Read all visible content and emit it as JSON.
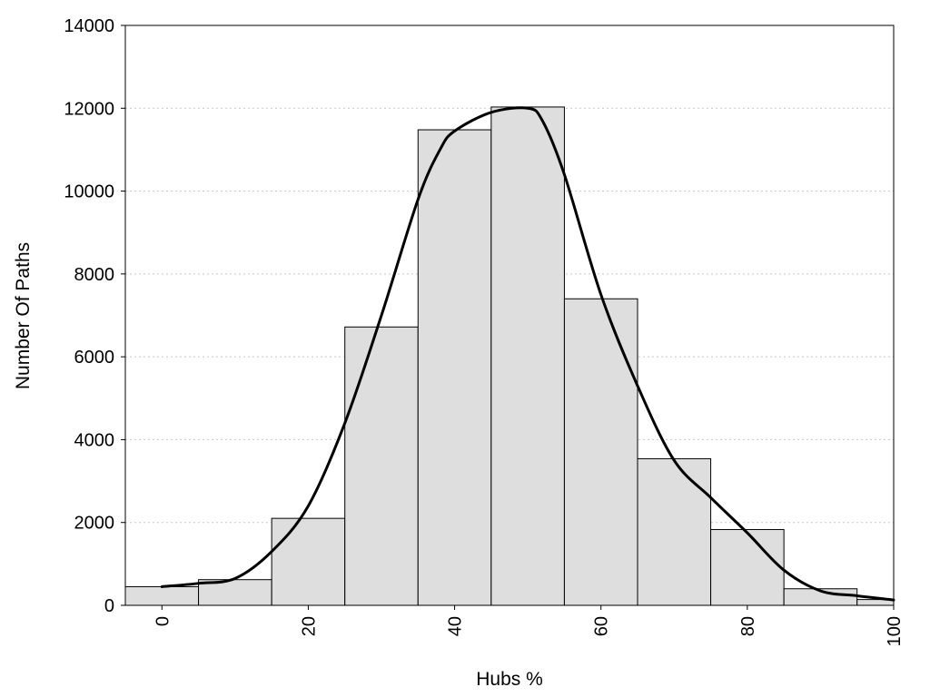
{
  "chart_data": {
    "type": "bar",
    "xlabel": "Hubs %",
    "ylabel": "Number Of Paths",
    "xlim": [
      -5,
      100
    ],
    "ylim": [
      0,
      14000
    ],
    "x_ticks": [
      0,
      20,
      40,
      60,
      80,
      100
    ],
    "y_ticks": [
      0,
      2000,
      4000,
      6000,
      8000,
      10000,
      12000,
      14000
    ],
    "grid": "horizontal dotted",
    "bar_color": "#dedede",
    "bins": [
      {
        "x_start": -5,
        "x_end": 5,
        "value": 450
      },
      {
        "x_start": 5,
        "x_end": 15,
        "value": 620
      },
      {
        "x_start": 15,
        "x_end": 25,
        "value": 2100
      },
      {
        "x_start": 25,
        "x_end": 35,
        "value": 6720
      },
      {
        "x_start": 35,
        "x_end": 45,
        "value": 11480
      },
      {
        "x_start": 45,
        "x_end": 55,
        "value": 12030
      },
      {
        "x_start": 55,
        "x_end": 65,
        "value": 7400
      },
      {
        "x_start": 65,
        "x_end": 75,
        "value": 3540
      },
      {
        "x_start": 75,
        "x_end": 85,
        "value": 1830
      },
      {
        "x_start": 85,
        "x_end": 95,
        "value": 400
      },
      {
        "x_start": 95,
        "x_end": 100,
        "value": 140
      }
    ],
    "curve": {
      "x": [
        0,
        5,
        10,
        15,
        20,
        25,
        30,
        35,
        38,
        40,
        45,
        50,
        52,
        55,
        60,
        65,
        70,
        75,
        80,
        85,
        90,
        95,
        100
      ],
      "y": [
        450,
        530,
        650,
        1300,
        2400,
        4400,
        7000,
        9800,
        11000,
        11450,
        11900,
        12000,
        11700,
        10400,
        7500,
        5300,
        3500,
        2600,
        1750,
        850,
        350,
        230,
        130
      ]
    }
  }
}
